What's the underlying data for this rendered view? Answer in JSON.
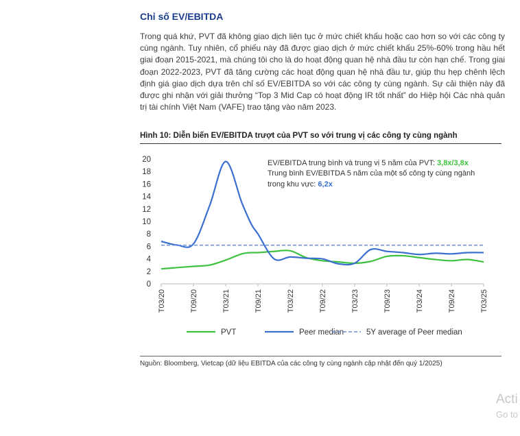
{
  "section": {
    "title": "Chỉ số EV/EBITDA",
    "paragraph": "Trong quá khứ, PVT đã không giao dịch liên tục ở mức chiết khấu hoặc cao hơn so với các công ty cùng ngành. Tuy nhiên, cổ phiếu này đã được giao dịch ở mức chiết khấu 25%-60% trong hầu hết giai đoạn 2015-2021, mà chúng tôi cho là do hoạt động quan hệ nhà đầu tư còn hạn chế. Trong giai đoạn 2022-2023, PVT đã tăng cường các hoạt động quan hệ nhà đầu tư, giúp thu hẹp chênh lệch định giá giao dịch dựa trên chỉ số EV/EBITDA so với các công ty cùng ngành. Sự cải thiện này đã được ghi nhận với giải thưởng “Top 3 Mid Cap có hoạt động IR tốt nhất” do Hiệp hội Các nhà quản trị tài chính Việt Nam (VAFE) trao tặng vào năm 2023."
  },
  "figure": {
    "title": "Hình 10: Diễn biến EV/EBITDA trượt của PVT so với trung vị các công ty cùng ngành",
    "annotation_line1_prefix": "EV/EBITDA trung bình và trung vị 5 năm của PVT: ",
    "annotation_line1_value": "3,8x/3,8x",
    "annotation_line2": "Trung bình EV/EBITDA 5 năm của một số công ty cùng ngành",
    "annotation_line3_prefix": "trong khu vực: ",
    "annotation_line3_value": "6,2x",
    "source": "Nguồn: Bloomberg, Vietcap (dữ liệu EBITDA của các công ty cùng ngành cập nhật đến quý 1/2025)"
  },
  "watermark": {
    "line1": "Acti",
    "line2": "Go to"
  },
  "chart_data": {
    "type": "line",
    "categories": [
      "T03/20",
      "T09/20",
      "T03/21",
      "T09/21",
      "T03/22",
      "T09/22",
      "T03/23",
      "T09/23",
      "T03/24",
      "T09/24",
      "T03/25"
    ],
    "ylim": [
      0,
      20
    ],
    "yticks": [
      0,
      2,
      4,
      6,
      8,
      10,
      12,
      14,
      16,
      18,
      20
    ],
    "x": [
      0,
      0.5,
      1,
      1.5,
      2,
      2.5,
      2.8,
      3,
      3.5,
      4,
      4.5,
      5,
      5.5,
      6,
      6.5,
      7,
      7.5,
      8,
      8.5,
      9,
      9.5,
      10
    ],
    "series": [
      {
        "name": "PVT",
        "color": "#3ec13e",
        "style": "solid",
        "values": [
          2.4,
          2.6,
          2.8,
          3.0,
          3.8,
          4.8,
          5.0,
          5.0,
          5.2,
          5.3,
          4.2,
          3.7,
          3.5,
          3.3,
          3.6,
          4.4,
          4.5,
          4.2,
          3.9,
          3.7,
          3.9,
          3.5
        ]
      },
      {
        "name": "Peer median",
        "color": "#3a6fd0",
        "style": "solid",
        "values": [
          6.8,
          6.2,
          6.4,
          12.5,
          19.6,
          13.0,
          9.5,
          8.0,
          4.0,
          4.3,
          4.1,
          4.0,
          3.2,
          3.3,
          5.5,
          5.2,
          5.0,
          4.7,
          4.9,
          4.8,
          5.0,
          5.0
        ]
      },
      {
        "name": "5Y average of Peer median",
        "color": "#6a8ed6",
        "style": "dashed",
        "values": [
          6.2,
          6.2,
          6.2,
          6.2,
          6.2,
          6.2,
          6.2,
          6.2,
          6.2,
          6.2,
          6.2,
          6.2,
          6.2,
          6.2,
          6.2,
          6.2,
          6.2,
          6.2,
          6.2,
          6.2,
          6.2,
          6.2
        ]
      }
    ],
    "legend": {
      "placement": "bottom"
    },
    "grid": false
  }
}
